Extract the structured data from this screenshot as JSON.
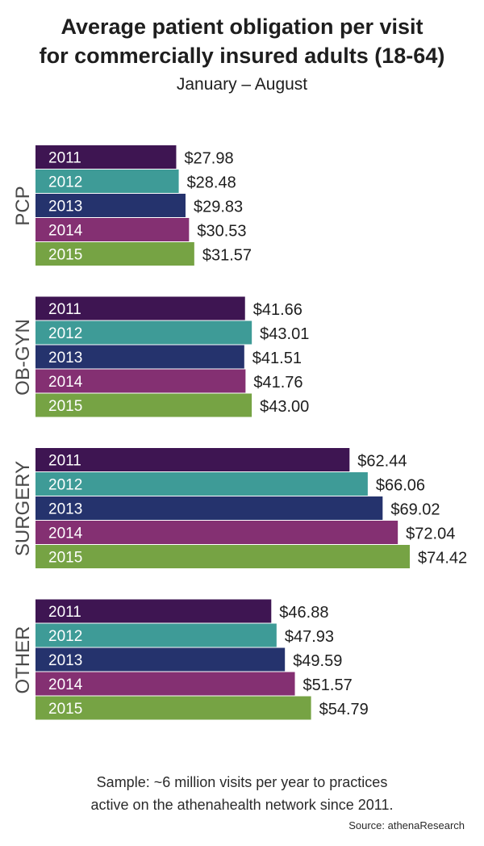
{
  "header": {
    "title_line1": "Average patient obligation per visit",
    "title_line2": "for commercially insured adults (18-64)",
    "subtitle": "January – August"
  },
  "footer": {
    "note_line1": "Sample: ~6 million visits per year to practices",
    "note_line2": "active on the athenahealth network since 2011.",
    "source": "Source: athenaResearch"
  },
  "colors": {
    "2011": "#3e1552",
    "2012": "#3e9b97",
    "2013": "#25336d",
    "2014": "#843072",
    "2015": "#76a344"
  },
  "chart_data": {
    "type": "bar",
    "orientation": "horizontal",
    "title": "Average patient obligation per visit for commercially insured adults (18-64)",
    "subtitle": "January – August",
    "years": [
      "2011",
      "2012",
      "2013",
      "2014",
      "2015"
    ],
    "groups": [
      {
        "name": "PCP",
        "values": [
          27.98,
          28.48,
          29.83,
          30.53,
          31.57
        ],
        "labels": [
          "$27.98",
          "$28.48",
          "$29.83",
          "$30.53",
          "$31.57"
        ]
      },
      {
        "name": "OB-GYN",
        "values": [
          41.66,
          43.01,
          41.51,
          41.76,
          43.0
        ],
        "labels": [
          "$41.66",
          "$43.01",
          "$41.51",
          "$41.76",
          "$43.00"
        ]
      },
      {
        "name": "SURGERY",
        "values": [
          62.44,
          66.06,
          69.02,
          72.04,
          74.42
        ],
        "labels": [
          "$62.44",
          "$66.06",
          "$69.02",
          "$72.04",
          "$74.42"
        ]
      },
      {
        "name": "OTHER",
        "values": [
          46.88,
          47.93,
          49.59,
          51.57,
          54.79
        ],
        "labels": [
          "$46.88",
          "$47.93",
          "$49.59",
          "$51.57",
          "$54.79"
        ]
      }
    ],
    "xlim": [
      0,
      74.42
    ],
    "grid": false,
    "legend": "none"
  }
}
